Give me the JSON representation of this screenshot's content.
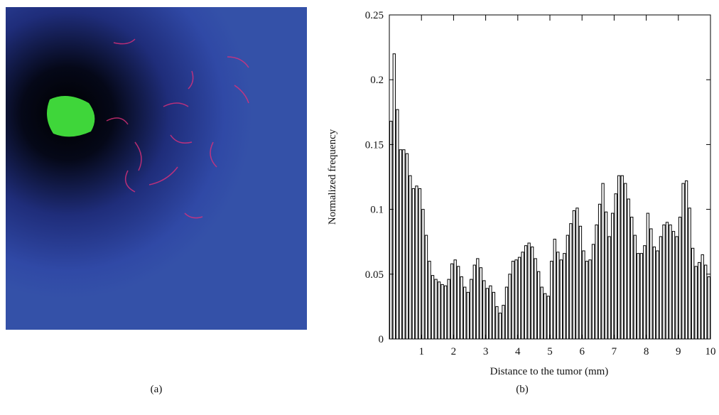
{
  "panel_labels": [
    "(a)",
    "(b)"
  ],
  "chart_data": {
    "type": "histogram",
    "xlabel": "Distance to the tumor (mm)",
    "ylabel": "Normalized frequency",
    "bins": [
      0,
      0.1,
      0.2,
      0.3,
      0.4,
      0.5,
      0.6,
      0.7,
      0.8,
      0.9,
      1,
      1.1,
      1.2,
      1.3,
      1.4,
      1.5,
      1.6,
      1.7,
      1.8,
      1.9,
      2,
      2.1,
      2.2,
      2.3,
      2.4,
      2.5,
      2.6,
      2.7,
      2.8,
      2.9,
      3,
      3.1,
      3.2,
      3.3,
      3.4,
      3.5,
      3.6,
      3.7,
      3.8,
      3.9,
      4,
      4.1,
      4.2,
      4.3,
      4.4,
      4.5,
      4.6,
      4.7,
      4.8,
      4.9,
      5,
      5.1,
      5.2,
      5.3,
      5.4,
      5.5,
      5.6,
      5.7,
      5.8,
      5.9,
      6,
      6.1,
      6.2,
      6.3,
      6.4,
      6.5,
      6.6,
      6.7,
      6.8,
      6.9,
      7,
      7.1,
      7.2,
      7.3,
      7.4,
      7.5,
      7.6,
      7.7,
      7.8,
      7.9,
      8,
      8.1,
      8.2,
      8.3,
      8.4,
      8.5,
      8.6,
      8.7,
      8.8,
      8.9,
      9,
      9.1,
      9.2,
      9.3,
      9.4,
      9.5,
      9.6,
      9.7,
      9.8,
      9.9,
      10
    ],
    "values": [
      0.168,
      0.22,
      0.177,
      0.146,
      0.146,
      0.143,
      0.126,
      0.116,
      0.118,
      0.116,
      0.1,
      0.08,
      0.06,
      0.049,
      0.046,
      0.044,
      0.042,
      0.041,
      0.046,
      0.058,
      0.061,
      0.056,
      0.048,
      0.04,
      0.036,
      0.046,
      0.057,
      0.062,
      0.055,
      0.045,
      0.039,
      0.041,
      0.036,
      0.025,
      0.02,
      0.026,
      0.04,
      0.05,
      0.06,
      0.061,
      0.063,
      0.067,
      0.072,
      0.074,
      0.071,
      0.062,
      0.052,
      0.04,
      0.035,
      0.033,
      0.06,
      0.077,
      0.067,
      0.061,
      0.066,
      0.08,
      0.089,
      0.099,
      0.101,
      0.087,
      0.068,
      0.06,
      0.061,
      0.073,
      0.088,
      0.104,
      0.12,
      0.098,
      0.079,
      0.097,
      0.112,
      0.126,
      0.126,
      0.12,
      0.108,
      0.094,
      0.08,
      0.066,
      0.066,
      0.072,
      0.097,
      0.085,
      0.071,
      0.068,
      0.079,
      0.088,
      0.09,
      0.088,
      0.083,
      0.079,
      0.094,
      0.12,
      0.122,
      0.101,
      0.07,
      0.056,
      0.059,
      0.065,
      0.057,
      0.048
    ],
    "color": "#ffffff",
    "edgecolor": "#000000",
    "xlim": [
      0,
      10
    ],
    "ylim": [
      0,
      0.25
    ],
    "xticks": [
      1,
      2,
      3,
      4,
      5,
      6,
      7,
      8,
      9,
      10
    ],
    "yticks": [
      0,
      0.05,
      0.1,
      0.15,
      0.2,
      0.25
    ]
  }
}
